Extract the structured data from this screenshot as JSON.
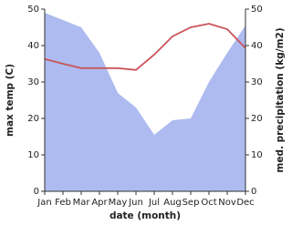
{
  "chart_data": {
    "type": "line_area",
    "x_label": "date (month)",
    "y_label": "max temp (C)",
    "y2_label": "med. precipitation (kg/m2)",
    "categories": [
      "Jan",
      "Feb",
      "Mar",
      "Apr",
      "May",
      "Jun",
      "Jul",
      "Aug",
      "Sep",
      "Oct",
      "Nov",
      "Dec"
    ],
    "series": [
      {
        "name": "med. precipitation",
        "type": "area",
        "axis": "y2",
        "color": "#aebbf0",
        "values": [
          49,
          47,
          45,
          38,
          27,
          23,
          15.5,
          19.5,
          20,
          30,
          38,
          45.5
        ]
      },
      {
        "name": "max temp",
        "type": "line",
        "axis": "y",
        "color": "#c9545a",
        "values": [
          36.3,
          35,
          33.8,
          33.8,
          33.8,
          33.3,
          37.5,
          42.5,
          45,
          46,
          44.5,
          39.3
        ]
      }
    ],
    "ylim": [
      0,
      50
    ],
    "yticks": [
      0,
      10,
      20,
      30,
      40,
      50
    ],
    "y2lim": [
      0,
      50
    ],
    "y2ticks": [
      0,
      10,
      20,
      30,
      40,
      50
    ]
  }
}
